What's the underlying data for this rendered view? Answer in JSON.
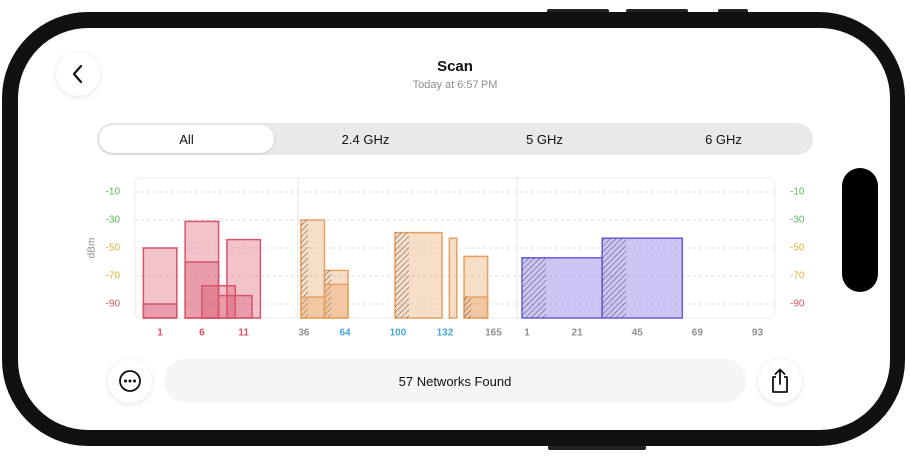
{
  "header": {
    "title": "Scan",
    "subtitle": "Today at 6:57 PM"
  },
  "tabs": [
    "All",
    "2.4 GHz",
    "5 GHz",
    "6 GHz"
  ],
  "selected_tab": 0,
  "chart_data": [
    {
      "type": "bar",
      "y_label": "dBm",
      "color": "#d9536a",
      "xlim": [
        -2,
        17.5
      ],
      "xticks": [
        1,
        6,
        11
      ],
      "xtick_colors": [
        "#d9536a",
        "#d9536a",
        "#d9536a"
      ],
      "ylim": [
        -100,
        0
      ],
      "yticks": [
        -10,
        -30,
        -50,
        -70,
        -90
      ],
      "ytick_colors": [
        "#5cb85c",
        "#5cb85c",
        "#e0b23a",
        "#e0b23a",
        "#d9536a"
      ],
      "grid": true,
      "networks": [
        {
          "x": [
            -1,
            3
          ],
          "value": -50,
          "hatched": false
        },
        {
          "x": [
            -1,
            3
          ],
          "value": -90,
          "hatched": false
        },
        {
          "x": [
            4,
            8
          ],
          "value": -31,
          "hatched": false
        },
        {
          "x": [
            4,
            8
          ],
          "value": -60,
          "hatched": false
        },
        {
          "x": [
            6,
            10
          ],
          "value": -77,
          "hatched": false
        },
        {
          "x": [
            8,
            12
          ],
          "value": -84,
          "hatched": false
        },
        {
          "x": [
            9,
            13
          ],
          "value": -44,
          "hatched": false
        }
      ]
    },
    {
      "type": "bar",
      "color": "#e8a060",
      "xlim": [
        32,
        181
      ],
      "xticks": [
        36,
        64,
        100,
        132,
        165
      ],
      "xtick_colors": [
        "#8e8e93",
        "#4aa8d8",
        "#4aa8d8",
        "#4aa8d8",
        "#8e8e93"
      ],
      "networks": [
        {
          "x": [
            34,
            50
          ],
          "value": -30,
          "hatched": true
        },
        {
          "x": [
            34,
            50
          ],
          "value": -85,
          "hatched": false
        },
        {
          "x": [
            50,
            66
          ],
          "value": -66,
          "hatched": true
        },
        {
          "x": [
            50,
            66
          ],
          "value": -76,
          "hatched": false
        },
        {
          "x": [
            98,
            130
          ],
          "value": -39,
          "hatched": true
        },
        {
          "x": [
            135,
            140
          ],
          "value": -43,
          "hatched": false
        },
        {
          "x": [
            145,
            161
          ],
          "value": -56,
          "hatched": false
        },
        {
          "x": [
            145,
            161
          ],
          "value": -85,
          "hatched": true
        }
      ]
    },
    {
      "type": "bar",
      "color": "#6a5ce0",
      "xlim": [
        -3,
        100
      ],
      "xticks": [
        1,
        21,
        45,
        69,
        93
      ],
      "xtick_colors": [
        "#8e8e93",
        "#8e8e93",
        "#8e8e93",
        "#8e8e93",
        "#8e8e93"
      ],
      "networks": [
        {
          "x": [
            -1,
            31
          ],
          "value": -57,
          "hatched": true
        },
        {
          "x": [
            31,
            63
          ],
          "value": -43,
          "hatched": true
        }
      ]
    }
  ],
  "status": "57 Networks Found"
}
